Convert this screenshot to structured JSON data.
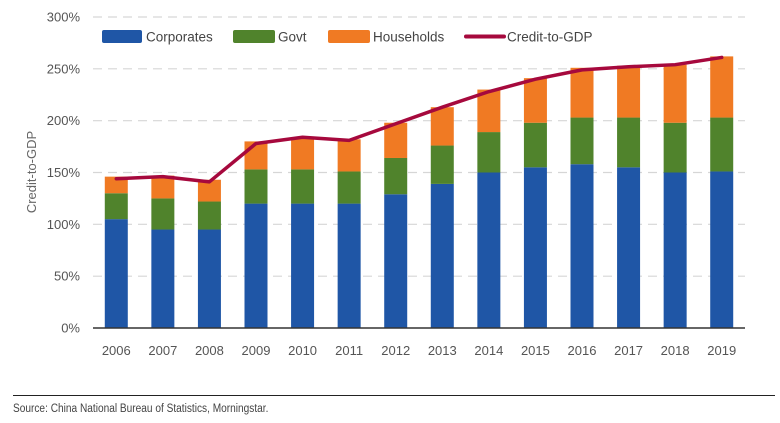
{
  "chart_data": {
    "type": "bar",
    "stacked": true,
    "title": "",
    "xlabel": "",
    "ylabel": "Credit-to-GDP",
    "ylim": [
      0,
      300
    ],
    "yticks": [
      0,
      50,
      100,
      150,
      200,
      250,
      300
    ],
    "ytick_labels": [
      "0%",
      "50%",
      "100%",
      "150%",
      "200%",
      "250%",
      "300%"
    ],
    "grid": true,
    "legend_position": "top",
    "categories": [
      "2006",
      "2007",
      "2008",
      "2009",
      "2010",
      "2011",
      "2012",
      "2013",
      "2014",
      "2015",
      "2016",
      "2017",
      "2018",
      "2019"
    ],
    "series": [
      {
        "name": "Corporates",
        "kind": "bar",
        "color": "#1f56a6",
        "values": [
          105,
          95,
          95,
          120,
          120,
          120,
          129,
          139,
          150,
          155,
          158,
          155,
          150,
          151
        ]
      },
      {
        "name": "Govt",
        "kind": "bar",
        "color": "#50832c",
        "values": [
          25,
          30,
          27,
          33,
          33,
          31,
          35,
          37,
          39,
          43,
          45,
          48,
          48,
          52
        ]
      },
      {
        "name": "Households",
        "kind": "bar",
        "color": "#f07a23",
        "values": [
          16,
          22,
          21,
          27,
          31,
          31,
          34,
          37,
          41,
          43,
          48,
          50,
          56,
          59
        ]
      },
      {
        "name": "Credit-to-GDP",
        "kind": "line",
        "color": "#a6093d",
        "values": [
          144,
          146,
          141,
          178,
          184,
          181,
          197,
          213,
          228,
          240,
          249,
          252,
          254,
          261
        ]
      }
    ]
  },
  "footer": {
    "source": "Source: China National Bureau of Statistics, Morningstar."
  }
}
